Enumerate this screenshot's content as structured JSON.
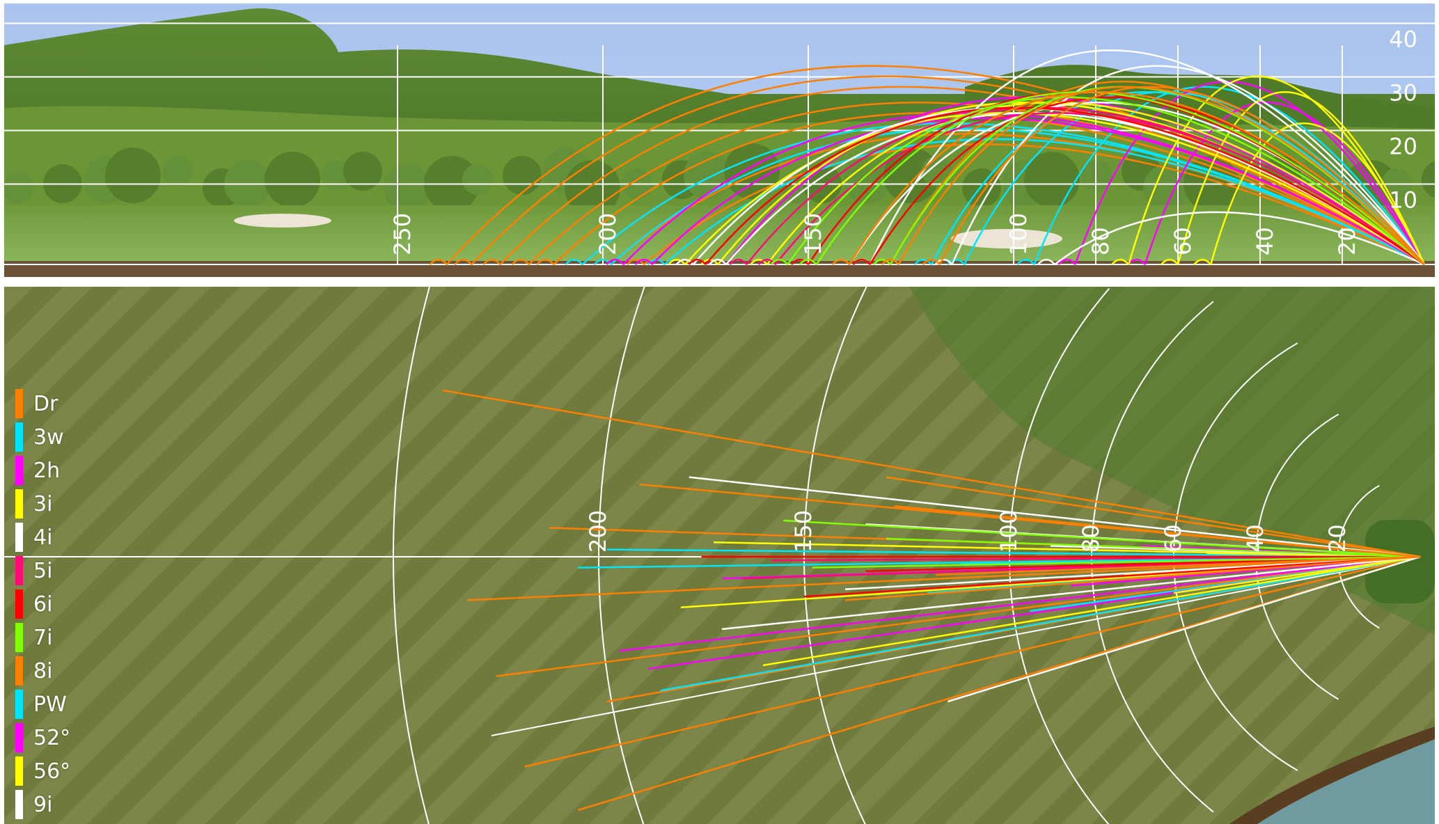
{
  "side_view": {
    "distance_labels": [
      "250",
      "200",
      "150",
      "100",
      "80",
      "60",
      "40",
      "20"
    ],
    "height_labels": [
      "40",
      "30",
      "20",
      "10"
    ]
  },
  "top_view": {
    "distance_labels": [
      "200",
      "150",
      "100",
      "80",
      "60",
      "40",
      "20"
    ]
  },
  "legend": [
    {
      "label": "Dr",
      "color": "#ff8000"
    },
    {
      "label": "3w",
      "color": "#00e5ff"
    },
    {
      "label": "2h",
      "color": "#ff00ff"
    },
    {
      "label": "3i",
      "color": "#ffff00"
    },
    {
      "label": "4i",
      "color": "#ffffff"
    },
    {
      "label": "5i",
      "color": "#ff0a78"
    },
    {
      "label": "6i",
      "color": "#ff0000"
    },
    {
      "label": "7i",
      "color": "#80ff00"
    },
    {
      "label": "8i",
      "color": "#ff8000"
    },
    {
      "label": "PW",
      "color": "#00e5ff"
    },
    {
      "label": "52°",
      "color": "#ff00ff"
    },
    {
      "label": "56°",
      "color": "#ffff00"
    },
    {
      "label": "9i",
      "color": "#ffffff"
    }
  ],
  "shots": [
    {
      "club": "Dr",
      "color": "#ff8000",
      "carry": 238,
      "apex": 35,
      "lateral": -46
    },
    {
      "club": "Dr",
      "color": "#ff8000",
      "carry": 232,
      "apex": 33,
      "lateral": 12
    },
    {
      "club": "Dr",
      "color": "#ff8000",
      "carry": 225,
      "apex": 31,
      "lateral": 33
    },
    {
      "club": "Dr",
      "color": "#ff8000",
      "carry": 218,
      "apex": 28,
      "lateral": 58
    },
    {
      "club": "Dr",
      "color": "#ff8000",
      "carry": 212,
      "apex": 26,
      "lateral": -8
    },
    {
      "club": "Dr",
      "color": "#ff8000",
      "carry": 205,
      "apex": 24,
      "lateral": 70
    },
    {
      "club": "Dr",
      "color": "#ff8000",
      "carry": 198,
      "apex": 22,
      "lateral": 40
    },
    {
      "club": "Dr",
      "color": "#ff8000",
      "carry": 190,
      "apex": 20,
      "lateral": -20
    },
    {
      "club": "Dr",
      "color": "#ff8000",
      "carry": 130,
      "apex": 32,
      "lateral": -22
    },
    {
      "club": "3w",
      "color": "#00e5ff",
      "carry": 205,
      "apex": 24,
      "lateral": 3
    },
    {
      "club": "3w",
      "color": "#00e5ff",
      "carry": 198,
      "apex": 23,
      "lateral": -2
    },
    {
      "club": "3w",
      "color": "#00e5ff",
      "carry": 185,
      "apex": 21,
      "lateral": 37
    },
    {
      "club": "3w",
      "color": "#00e5ff",
      "carry": 120,
      "apex": 30,
      "lateral": 10
    },
    {
      "club": "PW",
      "color": "#00e5ff",
      "carry": 112,
      "apex": 30,
      "lateral": 2
    },
    {
      "club": "PW",
      "color": "#00e5ff",
      "carry": 95,
      "apex": 31,
      "lateral": 15
    },
    {
      "club": "2h",
      "color": "#ff00ff",
      "carry": 195,
      "apex": 26,
      "lateral": 26
    },
    {
      "club": "2h",
      "color": "#ff00ff",
      "carry": 188,
      "apex": 25,
      "lateral": 31
    },
    {
      "club": "2h",
      "color": "#ff00ff",
      "carry": 170,
      "apex": 29,
      "lateral": 6
    },
    {
      "club": "52°",
      "color": "#ff00ff",
      "carry": 85,
      "apex": 32,
      "lateral": 8
    },
    {
      "club": "52°",
      "color": "#ff00ff",
      "carry": 68,
      "apex": 28,
      "lateral": -3
    },
    {
      "club": "3i",
      "color": "#ffff00",
      "carry": 180,
      "apex": 26,
      "lateral": 14
    },
    {
      "club": "3i",
      "color": "#ffff00",
      "carry": 172,
      "apex": 28,
      "lateral": -4
    },
    {
      "club": "3i",
      "color": "#ffff00",
      "carry": 160,
      "apex": 28,
      "lateral": 30
    },
    {
      "club": "56°",
      "color": "#ffff00",
      "carry": 72,
      "apex": 33,
      "lateral": 5
    },
    {
      "club": "56°",
      "color": "#ffff00",
      "carry": 60,
      "apex": 30,
      "lateral": 10
    },
    {
      "club": "56°",
      "color": "#ffff00",
      "carry": 52,
      "apex": 24,
      "lateral": -1
    },
    {
      "club": "4i",
      "color": "#ffffff",
      "carry": 178,
      "apex": 27,
      "lateral": -22
    },
    {
      "club": "4i",
      "color": "#ffffff",
      "carry": 170,
      "apex": 26,
      "lateral": 20
    },
    {
      "club": "4i",
      "color": "#ffffff",
      "carry": 140,
      "apex": 28,
      "lateral": 9
    },
    {
      "club": "9i",
      "color": "#ffffff",
      "carry": 135,
      "apex": 38,
      "lateral": -9
    },
    {
      "club": "9i",
      "color": "#ffffff",
      "carry": 115,
      "apex": 35,
      "lateral": 40
    },
    {
      "club": "9i",
      "color": "#ffffff",
      "carry": 90,
      "apex": 7,
      "lateral": -3
    },
    {
      "club": "5i",
      "color": "#ff0a78",
      "carry": 165,
      "apex": 27,
      "lateral": 6
    },
    {
      "club": "5i",
      "color": "#ff0a78",
      "carry": 158,
      "apex": 26,
      "lateral": 1
    },
    {
      "club": "6i",
      "color": "#ff0000",
      "carry": 175,
      "apex": 27,
      "lateral": 0
    },
    {
      "club": "6i",
      "color": "#ff0000",
      "carry": 150,
      "apex": 30,
      "lateral": 11
    },
    {
      "club": "6i",
      "color": "#ff0000",
      "carry": 135,
      "apex": 29,
      "lateral": 4
    },
    {
      "club": "7i",
      "color": "#80ff00",
      "carry": 155,
      "apex": 29,
      "lateral": -10
    },
    {
      "club": "7i",
      "color": "#80ff00",
      "carry": 148,
      "apex": 30,
      "lateral": 3
    },
    {
      "club": "7i",
      "color": "#80ff00",
      "carry": 130,
      "apex": 31,
      "lateral": -5
    },
    {
      "club": "8i",
      "color": "#ff8000",
      "carry": 140,
      "apex": 30,
      "lateral": 12
    },
    {
      "club": "8i",
      "color": "#ff8000",
      "carry": 128,
      "apex": 31,
      "lateral": -14
    },
    {
      "club": "8i",
      "color": "#ff8000",
      "carry": 118,
      "apex": 31,
      "lateral": 5
    }
  ]
}
